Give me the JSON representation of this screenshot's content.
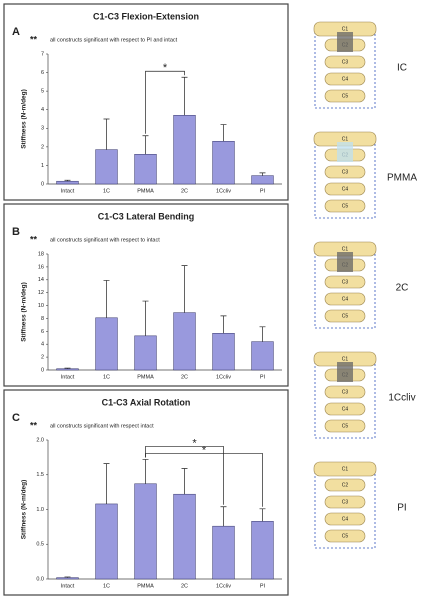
{
  "chart_data": [
    {
      "type": "bar",
      "panel": "A",
      "title": "C1-C3 Flexion-Extension",
      "note_mark": "**",
      "note": "all constructs significant with respect to PI and intact",
      "y_label": "Stiffness (N-m/deg)",
      "categories": [
        "Intact",
        "1C",
        "PMMA",
        "2C",
        "1Ccliv",
        "PI"
      ],
      "values": [
        0.15,
        1.85,
        1.6,
        3.7,
        2.3,
        0.45
      ],
      "errors": [
        0.05,
        1.65,
        1.0,
        2.05,
        0.9,
        0.15
      ],
      "color": "#9999dd",
      "ylim": [
        0,
        7
      ],
      "yticks": [
        0,
        1,
        2,
        3,
        4,
        5,
        6,
        7
      ],
      "brackets": [
        {
          "between": [
            "PMMA",
            "2C"
          ],
          "label": "*"
        }
      ]
    },
    {
      "type": "bar",
      "panel": "B",
      "title": "C1-C3 Lateral Bending",
      "note_mark": "**",
      "note": "all constructs significant with respect to intact",
      "y_label": "Stiffness (N-m/deg)",
      "categories": [
        "Intact",
        "1C",
        "PMMA",
        "2C",
        "1Ccliv",
        "PI"
      ],
      "values": [
        0.2,
        8.1,
        5.3,
        8.9,
        5.7,
        4.4
      ],
      "errors": [
        0.1,
        5.8,
        5.4,
        7.3,
        2.7,
        2.3
      ],
      "color": "#9999dd",
      "ylim": [
        0,
        18
      ],
      "yticks": [
        0,
        2,
        4,
        6,
        8,
        10,
        12,
        14,
        16,
        18
      ],
      "brackets": []
    },
    {
      "type": "bar",
      "panel": "C",
      "title": "C1-C3 Axial Rotation",
      "note_mark": "**",
      "note": "all constructs significant with respect intact",
      "y_label": "Stiffness (N-m/deg)",
      "categories": [
        "Intact",
        "1C",
        "PMMA",
        "2C",
        "1Ccliv",
        "PI"
      ],
      "values": [
        0.02,
        1.08,
        1.37,
        1.22,
        0.76,
        0.83
      ],
      "errors": [
        0.01,
        0.58,
        0.35,
        0.37,
        0.28,
        0.18
      ],
      "color": "#9999dd",
      "ylim": [
        0,
        2
      ],
      "yticks": [
        {
          "value": 0,
          "label": "0.0"
        },
        {
          "value": 0.5,
          "label": "0.5"
        },
        {
          "value": 1,
          "label": "1.0"
        },
        {
          "value": 1.5,
          "label": "1.5"
        },
        {
          "value": 2,
          "label": "2.0"
        }
      ],
      "brackets": [
        {
          "between": [
            "PMMA",
            "PI"
          ],
          "label": "*"
        },
        {
          "between": [
            "PMMA",
            "1Ccliv"
          ],
          "label": "*"
        }
      ]
    }
  ],
  "illustrations": {
    "labels": [
      "IC",
      "PMMA",
      "2C",
      "1Ccliv",
      "PI"
    ],
    "vertebra_labels": [
      "C1",
      "C2",
      "C3",
      "C4",
      "C5"
    ]
  }
}
